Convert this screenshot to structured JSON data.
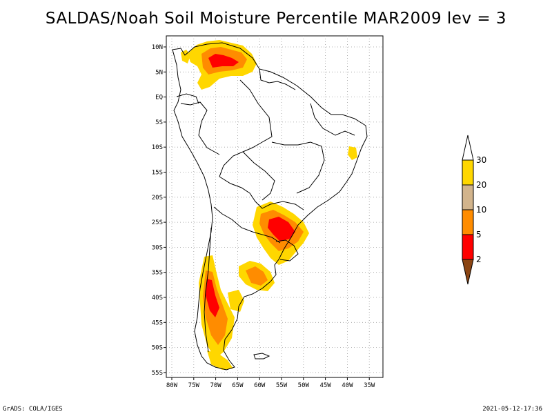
{
  "title": "SALDAS/Noah Soil Moisture Percentile MAR2009 lev = 3",
  "footer": {
    "left": "GrADS: COLA/IGES",
    "right": "2021-05-12-17:36"
  },
  "map": {
    "lon_ticks": [
      "80W",
      "75W",
      "70W",
      "65W",
      "60W",
      "55W",
      "50W",
      "45W",
      "40W",
      "35W"
    ],
    "lat_ticks": [
      "10N",
      "5N",
      "EQ",
      "5S",
      "10S",
      "15S",
      "20S",
      "25S",
      "30S",
      "35S",
      "40S",
      "45S",
      "50S",
      "55S"
    ],
    "grid": true
  },
  "legend": {
    "levels": [
      "2",
      "5",
      "10",
      "20",
      "30"
    ],
    "colors": {
      "lt2": "#8B4513",
      "2to5": "#FF0000",
      "5to10": "#FF8C00",
      "10to20": "#D2B48C",
      "20to30": "#FFD700",
      "gt30": "#FFFFFF"
    }
  }
}
